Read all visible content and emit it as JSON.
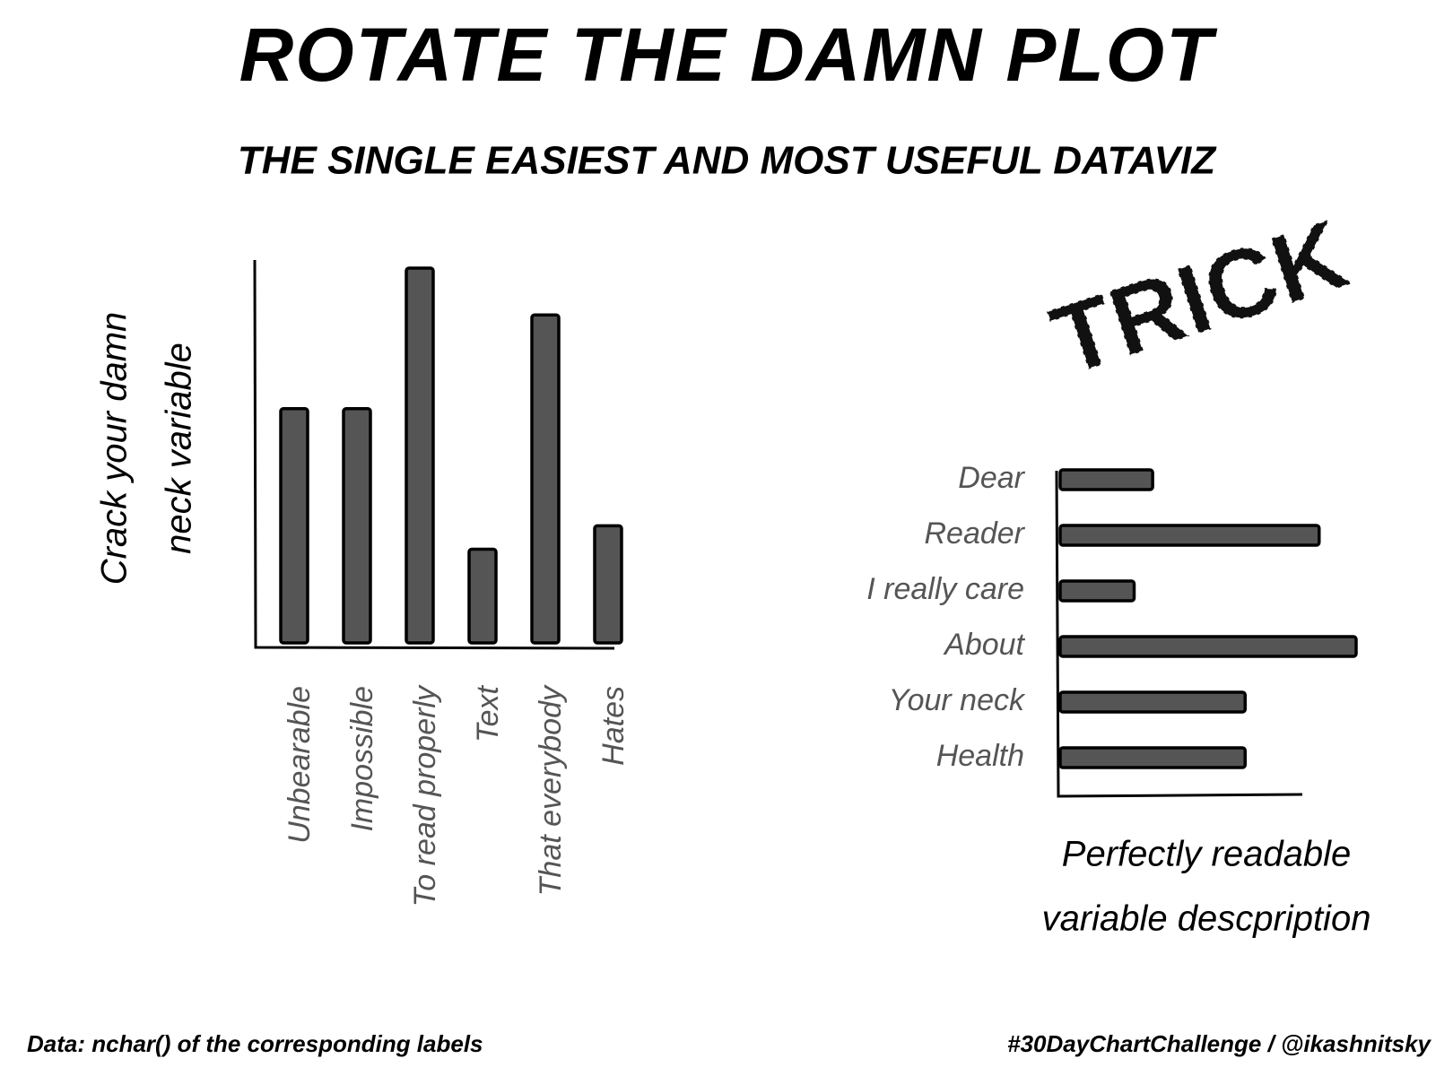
{
  "title": "ROTATE THE DAMN PLOT",
  "subtitle": "THE SINGLE EASIEST AND MOST USEFUL DATAVIZ",
  "stamp": "TRICK",
  "footer_left": "Data: nchar() of the corresponding labels",
  "footer_right": "#30DayChartChallenge / @ikashnitsky",
  "chart_data": [
    {
      "type": "bar",
      "orientation": "vertical",
      "y_label": [
        "Crack your damn",
        "neck variable"
      ],
      "categories": [
        "Unbearable",
        "Impossible",
        "To read properly",
        "Text",
        "That everybody",
        "Hates"
      ],
      "values": [
        10,
        10,
        16,
        4,
        14,
        5
      ],
      "color": "#555555",
      "ylim": [
        0,
        16
      ]
    },
    {
      "type": "bar",
      "orientation": "horizontal",
      "x_label": [
        "Perfectly readable",
        "variable descpription"
      ],
      "categories": [
        "Dear",
        "Reader",
        "I really care",
        "About",
        "Your neck",
        "Health"
      ],
      "values": [
        5,
        14,
        4,
        16,
        10,
        10
      ],
      "color": "#555555",
      "xlim": [
        0,
        16
      ]
    }
  ]
}
